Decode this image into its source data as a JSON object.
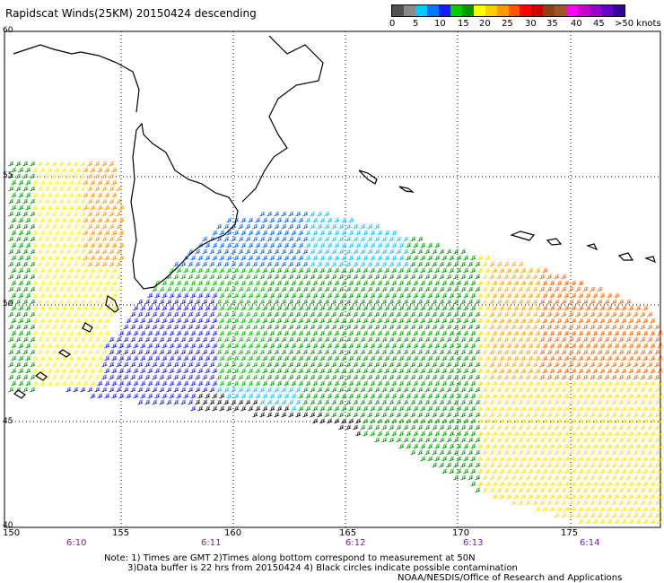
{
  "title": "Rapidscat Winds(25KM) 20150424 descending",
  "colorbar": {
    "colors": [
      "#505050",
      "#8a8a8a",
      "#00ccff",
      "#0077ff",
      "#1a1aff",
      "#00cc00",
      "#009900",
      "#ffff00",
      "#ffcc00",
      "#ff9900",
      "#ff5500",
      "#ff0000",
      "#cc0000",
      "#8b4513",
      "#a0522d",
      "#ff00ff",
      "#cc00cc",
      "#9900cc",
      "#6600cc",
      "#330099"
    ],
    "labels": [
      "0",
      "5",
      "10",
      "15",
      "20",
      "25",
      "30",
      "35",
      "40",
      "45",
      ">50 knots"
    ]
  },
  "axes": {
    "lat_labels": [
      "60",
      "55",
      "50",
      "45",
      "40"
    ],
    "lon_labels": [
      "150",
      "155",
      "160",
      "165",
      "170",
      "175"
    ],
    "time_labels": [
      "6:10",
      "6:11",
      "6:12",
      "6:13",
      "6:14"
    ]
  },
  "notes": {
    "line1": "Note: 1) Times are GMT 2)Times along bottom correspond to measurement at 50N",
    "line2": "3)Data buffer is 22 hrs from 20150424 4) Black circles indicate possible contamination",
    "line3": "NOAA/NESDIS/Office of Research and Applications"
  }
}
